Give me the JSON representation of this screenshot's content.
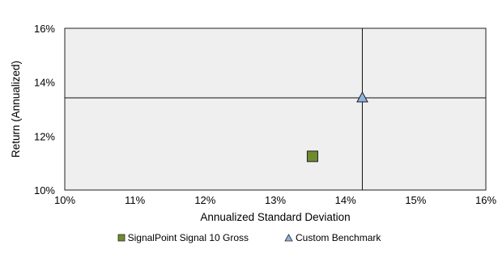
{
  "chart_data": {
    "type": "scatter",
    "title": "",
    "xlabel": "Annualized Standard Deviation",
    "ylabel": "Return (Annualized)",
    "xlim": [
      10,
      16
    ],
    "ylim": [
      10,
      16
    ],
    "x_ticks": [
      "10%",
      "11%",
      "12%",
      "13%",
      "14%",
      "15%",
      "16%"
    ],
    "y_ticks": [
      "10%",
      "12%",
      "14%",
      "16%"
    ],
    "grid": false,
    "plot_background": "#efefef",
    "legend_position": "bottom",
    "reference_lines": {
      "x": 14.24,
      "y": 13.42
    },
    "series": [
      {
        "name": "SignalPoint Signal 10 Gross",
        "marker": "square",
        "color": "#6e8b2f",
        "x": 13.53,
        "y": 11.25
      },
      {
        "name": "Custom Benchmark",
        "marker": "triangle",
        "color": "#8eb4e3",
        "x": 14.24,
        "y": 13.42
      }
    ]
  }
}
